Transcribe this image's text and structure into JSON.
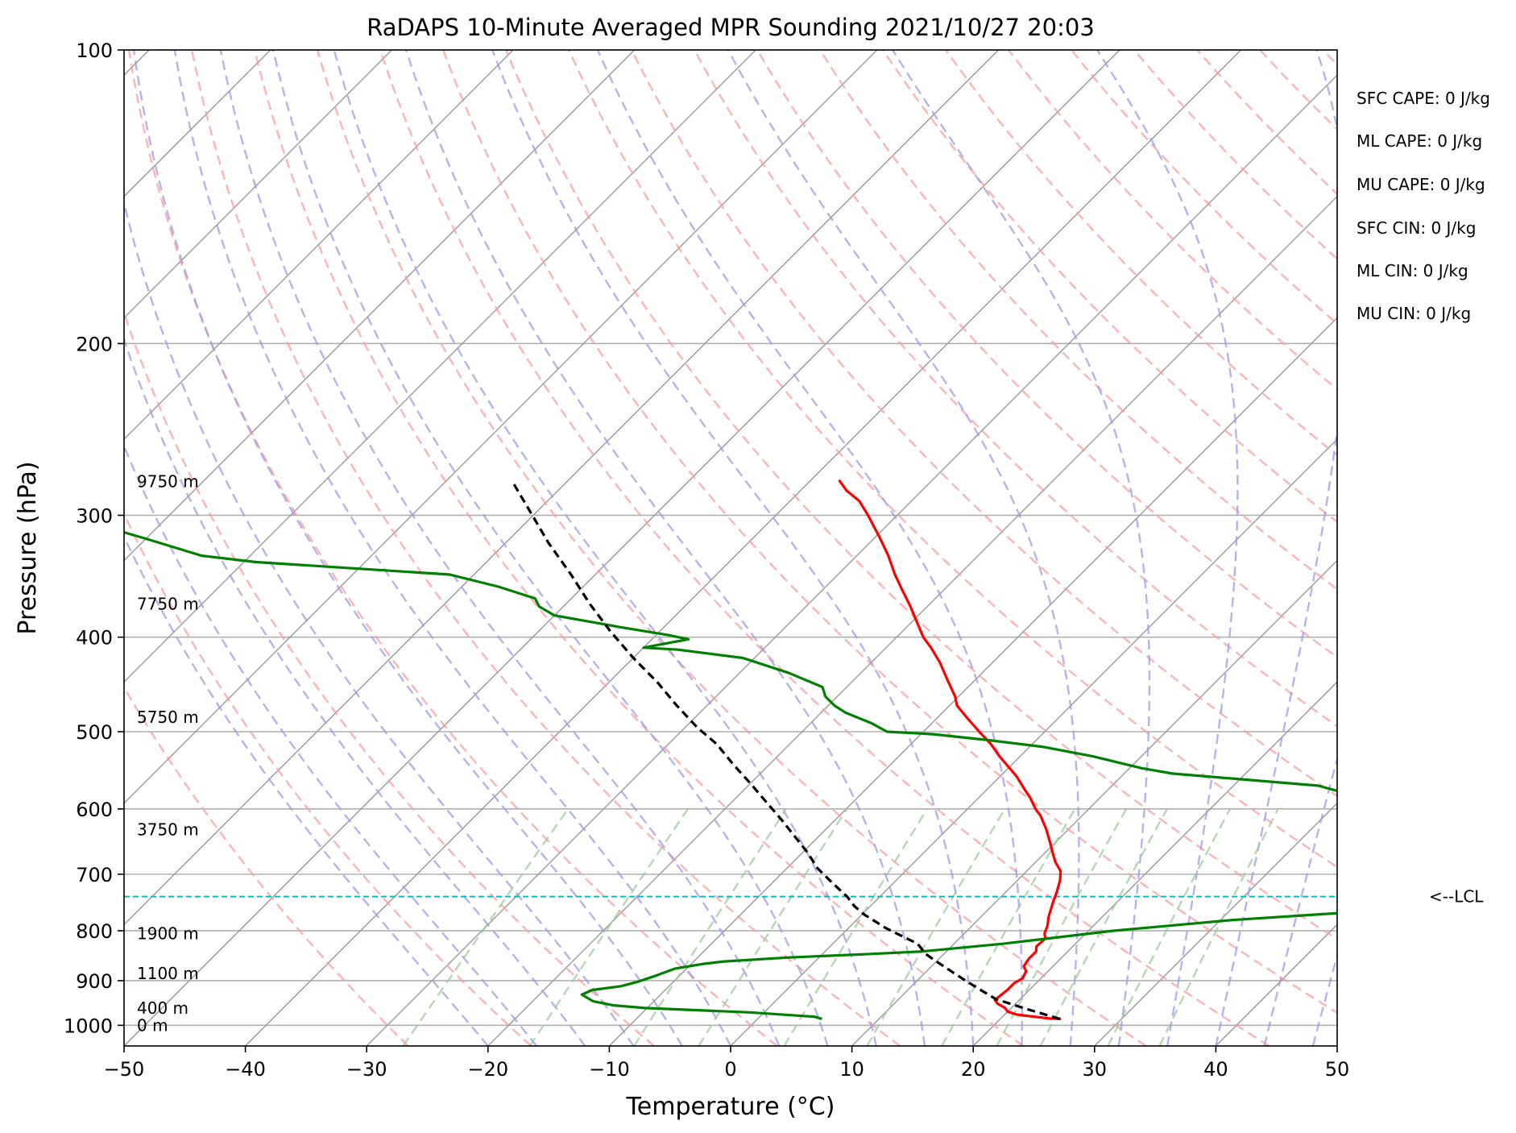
{
  "chart_data": {
    "type": "line",
    "title": "RaDAPS 10-Minute Averaged MPR Sounding 2021/10/27 20:03",
    "xlabel": "Temperature (°C)",
    "ylabel": "Pressure (hPa)",
    "xlim": [
      -50,
      50
    ],
    "ylim": [
      1050,
      100
    ],
    "y_scale": "log",
    "skew": "temperature lines skewed 45°",
    "grid": true,
    "x_ticks": [
      "−50",
      "−40",
      "−30",
      "−20",
      "−10",
      "0",
      "10",
      "20",
      "30",
      "40",
      "50"
    ],
    "y_ticks": [
      "1000",
      "900",
      "800",
      "700",
      "600",
      "500",
      "400",
      "300",
      "200",
      "100"
    ],
    "height_labels": [
      {
        "text": "0 m",
        "p": 1000
      },
      {
        "text": "400 m",
        "p": 960
      },
      {
        "text": "1100 m",
        "p": 885
      },
      {
        "text": "1900 m",
        "p": 805
      },
      {
        "text": "3750 m",
        "p": 630
      },
      {
        "text": "5750 m",
        "p": 483
      },
      {
        "text": "7750 m",
        "p": 370
      },
      {
        "text": "9750 m",
        "p": 277
      }
    ],
    "indices": [
      "SFC CAPE: 0 J/kg",
      "ML CAPE: 0 J/kg",
      "MU CAPE: 0 J/kg",
      "SFC CIN: 0 J/kg",
      "ML CIN: 0 J/kg",
      "MU CIN: 0 J/kg"
    ],
    "lcl": {
      "label": "<--LCL",
      "p": 738
    },
    "colors": {
      "temperature": "#ff0000",
      "dewpoint": "#008000",
      "parcel": "#000000",
      "lcl": "#00bfbf",
      "dry_adiabats": "#ff9999",
      "moist_adiabats": "#9999ee",
      "mixing_ratio": "#99cc99",
      "isotherms": "#999999"
    },
    "series": [
      {
        "id": "temperature",
        "points": [
          [
            25,
            985
          ],
          [
            24,
            984
          ],
          [
            23,
            981
          ],
          [
            21,
            975
          ],
          [
            20,
            968
          ],
          [
            19.5,
            960
          ],
          [
            18.5,
            950
          ],
          [
            18,
            942
          ],
          [
            18.2,
            920
          ],
          [
            18.2,
            905
          ],
          [
            18.5,
            895
          ],
          [
            18.2,
            880
          ],
          [
            17.6,
            870
          ],
          [
            17.4,
            855
          ],
          [
            17.4,
            840
          ],
          [
            17,
            830
          ],
          [
            17.1,
            815
          ],
          [
            16.6,
            805
          ],
          [
            16.2,
            790
          ],
          [
            15.6,
            775
          ],
          [
            14.8,
            750
          ],
          [
            14.2,
            730
          ],
          [
            13.5,
            710
          ],
          [
            12.8,
            695
          ],
          [
            11.6,
            680
          ],
          [
            10.6,
            665
          ],
          [
            9.6,
            650
          ],
          [
            8.2,
            630
          ],
          [
            6.6,
            610
          ],
          [
            5.6,
            600
          ],
          [
            4.3,
            585
          ],
          [
            2.8,
            570
          ],
          [
            1.3,
            555
          ],
          [
            -1.7,
            530
          ],
          [
            -3.4,
            515
          ],
          [
            -5.4,
            500
          ],
          [
            -7.4,
            485
          ],
          [
            -9.4,
            470
          ],
          [
            -10.3,
            460
          ],
          [
            -12,
            445
          ],
          [
            -14.3,
            425
          ],
          [
            -16.3,
            410
          ],
          [
            -17.8,
            400
          ],
          [
            -19.7,
            385
          ],
          [
            -21.4,
            372
          ],
          [
            -23.4,
            358
          ],
          [
            -25.3,
            345
          ],
          [
            -27.4,
            330
          ],
          [
            -29.8,
            315
          ],
          [
            -32.4,
            300
          ],
          [
            -34.3,
            290
          ],
          [
            -36.2,
            283
          ],
          [
            -37.7,
            276
          ]
        ]
      },
      {
        "id": "dewpoint",
        "points": [
          [
            5.3,
            985
          ],
          [
            4.5,
            980
          ],
          [
            -1.2,
            970
          ],
          [
            -10.2,
            960
          ],
          [
            -13,
            954
          ],
          [
            -15,
            945
          ],
          [
            -16.5,
            930
          ],
          [
            -16,
            920
          ],
          [
            -14,
            912
          ],
          [
            -13,
            903
          ],
          [
            -12,
            890
          ],
          [
            -11,
            875
          ],
          [
            -9,
            865
          ],
          [
            -7.5,
            860
          ],
          [
            -2.5,
            852
          ],
          [
            4,
            845
          ],
          [
            8,
            840
          ],
          [
            14,
            825
          ],
          [
            22,
            800
          ],
          [
            31,
            780
          ],
          [
            44,
            760
          ],
          [
            53,
            750
          ],
          [
            59.5,
            740
          ],
          [
            62,
            730
          ],
          [
            65,
            720
          ],
          [
            67,
            712
          ],
          [
            58,
            705
          ],
          [
            55,
            700
          ],
          [
            52,
            690
          ],
          [
            47,
            670
          ],
          [
            44,
            655
          ],
          [
            42,
            650
          ],
          [
            39,
            630
          ],
          [
            36,
            610
          ],
          [
            34,
            600
          ],
          [
            31,
            585
          ],
          [
            29,
            575
          ],
          [
            27,
            568
          ],
          [
            14,
            552
          ],
          [
            11,
            545
          ],
          [
            6,
            530
          ],
          [
            1,
            518
          ],
          [
            -4,
            510
          ],
          [
            -9,
            503
          ],
          [
            -13,
            500
          ],
          [
            -15,
            490
          ],
          [
            -18,
            478
          ],
          [
            -19.5,
            470
          ],
          [
            -21,
            460
          ],
          [
            -22,
            450
          ],
          [
            -26,
            435
          ],
          [
            -31,
            420
          ],
          [
            -37,
            412
          ],
          [
            -40,
            410
          ],
          [
            -37,
            402
          ],
          [
            -39,
            398
          ],
          [
            -44,
            390
          ],
          [
            -50,
            380
          ],
          [
            -52,
            372
          ],
          [
            -53,
            365
          ],
          [
            -57,
            355
          ],
          [
            -62,
            345
          ],
          [
            -79,
            335
          ],
          [
            -84,
            330
          ],
          [
            -90,
            317
          ],
          [
            -96,
            305
          ],
          [
            -104,
            300
          ],
          [
            -115,
            295
          ],
          [
            -125,
            288
          ],
          [
            -133,
            283
          ],
          [
            -140,
            277
          ],
          [
            -145,
            274
          ]
        ]
      },
      {
        "id": "parcel",
        "points": [
          [
            24.9,
            985
          ],
          [
            21,
            960
          ],
          [
            18,
            940
          ],
          [
            16,
            920
          ],
          [
            14,
            900
          ],
          [
            12,
            880
          ],
          [
            10,
            860
          ],
          [
            8.5,
            845
          ],
          [
            7,
            825
          ],
          [
            4.8,
            808
          ],
          [
            3.1,
            795
          ],
          [
            1.6,
            782
          ],
          [
            0.2,
            770
          ],
          [
            -1.3,
            755
          ],
          [
            -2.7,
            738
          ],
          [
            -5,
            715
          ],
          [
            -7.5,
            690
          ],
          [
            -9.6,
            665
          ],
          [
            -12,
            640
          ],
          [
            -14.5,
            615
          ],
          [
            -17.2,
            590
          ],
          [
            -20,
            565
          ],
          [
            -23,
            540
          ],
          [
            -26,
            515
          ],
          [
            -29,
            495
          ],
          [
            -32.5,
            470
          ],
          [
            -36,
            445
          ],
          [
            -40,
            420
          ],
          [
            -44,
            395
          ],
          [
            -48,
            370
          ],
          [
            -52,
            345
          ],
          [
            -56.5,
            320
          ],
          [
            -61,
            295
          ],
          [
            -64.3,
            278
          ]
        ]
      }
    ]
  }
}
